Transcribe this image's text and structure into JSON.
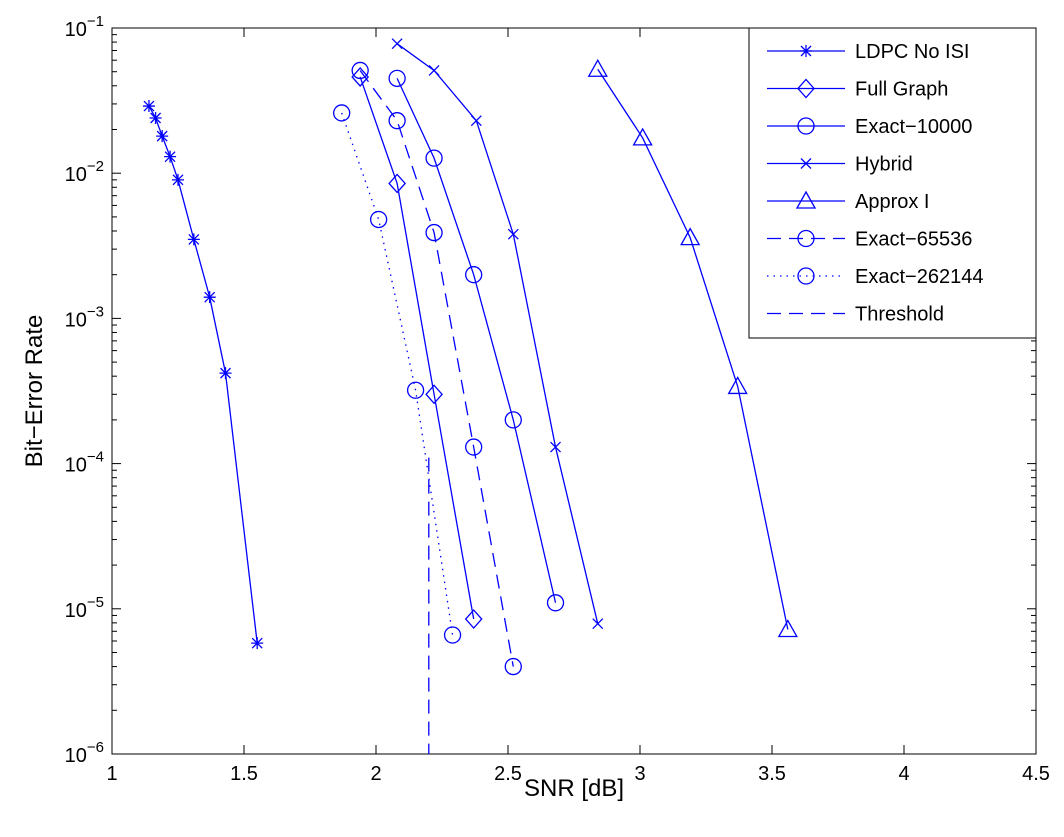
{
  "chart_data": {
    "type": "line",
    "xlabel": "SNR [dB]",
    "ylabel": "Bit−Error Rate",
    "xlim": [
      1,
      4.5
    ],
    "ylim": [
      1e-06,
      0.1
    ],
    "yscale": "log",
    "grid": false,
    "legend_position": "top-right",
    "color": "#0000ff",
    "x_ticks": [
      "1",
      "1.5",
      "2",
      "2.5",
      "3",
      "3.5",
      "4",
      "4.5"
    ],
    "x_tick_values": [
      1,
      1.5,
      2,
      2.5,
      3,
      3.5,
      4,
      4.5
    ],
    "y_ticks": [
      {
        "base": "10",
        "exp": "−1",
        "value": 0.1
      },
      {
        "base": "10",
        "exp": "−2",
        "value": 0.01
      },
      {
        "base": "10",
        "exp": "−3",
        "value": 0.001
      },
      {
        "base": "10",
        "exp": "−4",
        "value": 0.0001
      },
      {
        "base": "10",
        "exp": "−5",
        "value": 1e-05
      },
      {
        "base": "10",
        "exp": "−6",
        "value": 1e-06
      }
    ],
    "series": [
      {
        "name": "LDPC No ISI",
        "line": "solid",
        "marker": "asterisk",
        "x": [
          1.14,
          1.165,
          1.19,
          1.22,
          1.25,
          1.31,
          1.37,
          1.43,
          1.55
        ],
        "y": [
          0.029,
          0.024,
          0.018,
          0.013,
          0.009,
          0.0035,
          0.0014,
          0.00042,
          5.8e-06
        ]
      },
      {
        "name": "Full Graph",
        "line": "solid",
        "marker": "diamond",
        "x": [
          1.94,
          2.08,
          2.22,
          2.37
        ],
        "y": [
          0.046,
          0.0085,
          0.0003,
          8.5e-06
        ]
      },
      {
        "name": "Exact−10000",
        "line": "solid",
        "marker": "circle",
        "x": [
          2.08,
          2.22,
          2.37,
          2.52,
          2.68
        ],
        "y": [
          0.045,
          0.0127,
          0.002,
          0.0002,
          1.1e-05
        ]
      },
      {
        "name": "Hybrid",
        "line": "solid",
        "marker": "x",
        "x": [
          2.08,
          2.22,
          2.38,
          2.52,
          2.68,
          2.84
        ],
        "y": [
          0.078,
          0.051,
          0.023,
          0.0038,
          0.00013,
          7.9e-06
        ]
      },
      {
        "name": "Approx I",
        "line": "solid",
        "marker": "triangle",
        "x": [
          2.84,
          3.01,
          3.19,
          3.37,
          3.56
        ],
        "y": [
          0.052,
          0.0175,
          0.0036,
          0.00034,
          7.2e-06
        ]
      },
      {
        "name": "Exact−65536",
        "line": "dashed",
        "marker": "circle",
        "x": [
          1.94,
          2.08,
          2.22,
          2.37,
          2.52
        ],
        "y": [
          0.051,
          0.023,
          0.0039,
          0.00013,
          4e-06
        ]
      },
      {
        "name": "Exact−262144",
        "line": "dotted",
        "marker": "circle",
        "x": [
          1.87,
          2.01,
          2.15,
          2.29
        ],
        "y": [
          0.026,
          0.0048,
          0.00032,
          6.6e-06
        ]
      },
      {
        "name": "Threshold",
        "line": "dashed",
        "marker": "none",
        "x": [
          2.2,
          2.2
        ],
        "y": [
          0.00011,
          1e-06
        ]
      }
    ]
  }
}
